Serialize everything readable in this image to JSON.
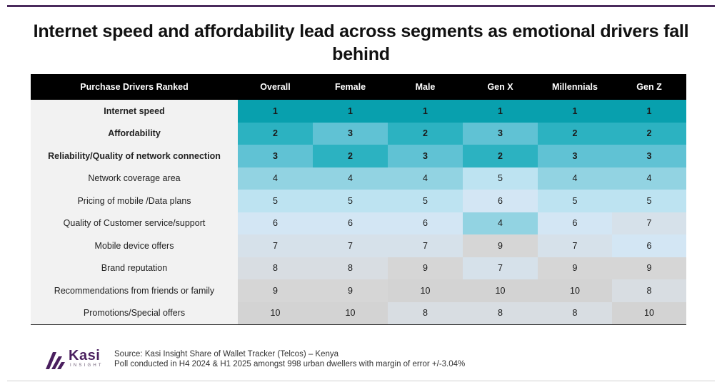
{
  "title": "Internet speed and affordability lead across segments as emotional drivers fall behind",
  "chart_data": {
    "type": "table",
    "columns": [
      "Purchase Drivers Ranked",
      "Overall",
      "Female",
      "Male",
      "Gen X",
      "Millennials",
      "Gen Z"
    ],
    "rows": [
      {
        "label": "Internet speed",
        "ranks": [
          "1",
          "1",
          "1",
          "1",
          "1",
          "1"
        ]
      },
      {
        "label": "Affordability",
        "ranks": [
          "2",
          "3",
          "2",
          "3",
          "2",
          "2"
        ]
      },
      {
        "label": "Reliability/Quality of network connection",
        "ranks": [
          "3",
          "2",
          "3",
          "2",
          "3",
          "3"
        ]
      },
      {
        "label": "Network coverage area",
        "ranks": [
          "4",
          "4",
          "4",
          "5",
          "4",
          "4"
        ]
      },
      {
        "label": "Pricing of mobile /Data plans",
        "ranks": [
          "5",
          "5",
          "5",
          "6",
          "5",
          "5"
        ]
      },
      {
        "label": "Quality of Customer service/support",
        "ranks": [
          "6",
          "6",
          "6",
          "4",
          "6",
          "7"
        ]
      },
      {
        "label": "Mobile device offers",
        "ranks": [
          "7",
          "7",
          "7",
          "9",
          "7",
          "6"
        ]
      },
      {
        "label": "Brand reputation",
        "ranks": [
          "8",
          "8",
          "9",
          "7",
          "9",
          "9"
        ]
      },
      {
        "label": "Recommendations from friends or family",
        "ranks": [
          "9",
          "9",
          "10",
          "10",
          "10",
          "8"
        ]
      },
      {
        "label": "Promotions/Special offers",
        "ranks": [
          "10",
          "10",
          "8",
          "8",
          "8",
          "10"
        ]
      }
    ],
    "bold_top_rows": 3,
    "rank_colors": {
      "1": "#08a0ae",
      "2": "#2cb2c1",
      "3": "#60c2d4",
      "4": "#92d3e2",
      "5": "#bde3f1",
      "6": "#d3e6f4",
      "7": "#d6e1ea",
      "8": "#d8dde2",
      "9": "#d6d6d6",
      "10": "#d3d3d3"
    }
  },
  "footer": {
    "logo_word": "Kasi",
    "logo_sub": "INSIGHT",
    "source_line1": "Source: Kasi Insight Share of Wallet Tracker (Telcos)  – Kenya",
    "source_line2": "Poll conducted in H4 2024 & H1 2025 amongst  998 urban dwellers with margin of error +/-3.04%"
  }
}
